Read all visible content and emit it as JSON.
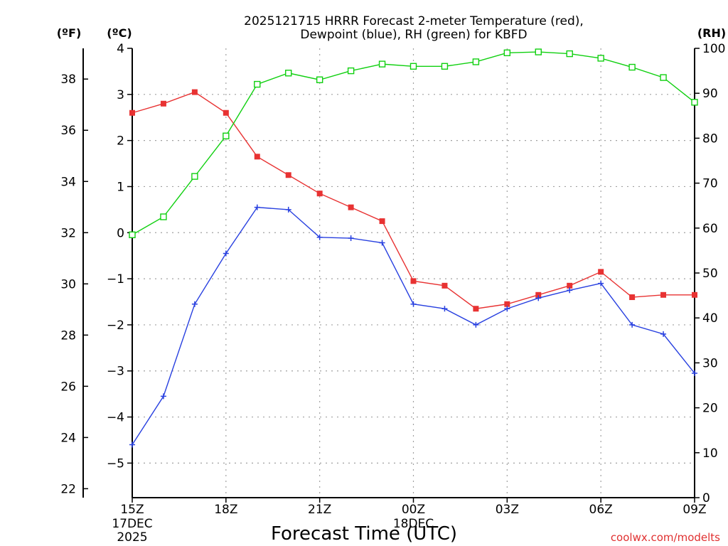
{
  "chart_data": {
    "type": "line",
    "title": "2025121715 HRRR Forecast 2-meter Temperature (red),",
    "subtitle": "Dewpoint (blue), RH (green) for KBFD",
    "xlabel": "Forecast Time (UTC)",
    "units": {
      "fahrenheit": "(ºF)",
      "celsius": "(ºC)",
      "rh": "(RH)"
    },
    "x_hours": [
      0,
      1,
      2,
      3,
      4,
      5,
      6,
      7,
      8,
      9,
      10,
      11,
      12,
      13,
      14,
      15,
      16,
      17,
      18
    ],
    "x_ticks": [
      {
        "hour": 0,
        "label": "15Z",
        "sub": [
          "17DEC",
          "2025"
        ]
      },
      {
        "hour": 3,
        "label": "18Z",
        "sub": []
      },
      {
        "hour": 6,
        "label": "21Z",
        "sub": []
      },
      {
        "hour": 9,
        "label": "00Z",
        "sub": [
          "18DEC"
        ]
      },
      {
        "hour": 12,
        "label": "03Z",
        "sub": []
      },
      {
        "hour": 15,
        "label": "06Z",
        "sub": []
      },
      {
        "hour": 18,
        "label": "09Z",
        "sub": []
      }
    ],
    "y_celsius_range": [
      -5.75,
      4.0
    ],
    "y_celsius_ticks": [
      {
        "v": 4,
        "label": "4"
      },
      {
        "v": 3,
        "label": "3"
      },
      {
        "v": 2,
        "label": "2"
      },
      {
        "v": 1,
        "label": "1"
      },
      {
        "v": 0,
        "label": "0"
      },
      {
        "v": -1,
        "label": "−1"
      },
      {
        "v": -2,
        "label": "−2"
      },
      {
        "v": -3,
        "label": "−3"
      },
      {
        "v": -4,
        "label": "−4"
      },
      {
        "v": -5,
        "label": "−5"
      }
    ],
    "y_fahrenheit_ticks": [
      {
        "v": 38,
        "label": "38"
      },
      {
        "v": 36,
        "label": "36"
      },
      {
        "v": 34,
        "label": "34"
      },
      {
        "v": 32,
        "label": "32"
      },
      {
        "v": 30,
        "label": "30"
      },
      {
        "v": 28,
        "label": "28"
      },
      {
        "v": 26,
        "label": "26"
      },
      {
        "v": 24,
        "label": "24"
      },
      {
        "v": 22,
        "label": "22"
      }
    ],
    "y_rh_range": [
      0,
      100
    ],
    "y_rh_ticks": [
      {
        "v": 100,
        "label": "100"
      },
      {
        "v": 90,
        "label": "90"
      },
      {
        "v": 80,
        "label": "80"
      },
      {
        "v": 70,
        "label": "70"
      },
      {
        "v": 60,
        "label": "60"
      },
      {
        "v": 50,
        "label": "50"
      },
      {
        "v": 40,
        "label": "40"
      },
      {
        "v": 30,
        "label": "30"
      },
      {
        "v": 20,
        "label": "20"
      },
      {
        "v": 10,
        "label": "10"
      },
      {
        "v": 0,
        "label": "0"
      }
    ],
    "grid": true,
    "series": [
      {
        "name": "2-meter Temperature",
        "axis": "celsius",
        "color": "#e83232",
        "marker": "filled-square",
        "values": [
          2.6,
          2.8,
          3.05,
          2.6,
          1.65,
          1.25,
          0.85,
          0.55,
          0.25,
          -1.05,
          -1.15,
          -1.65,
          -1.55,
          -1.35,
          -1.15,
          -0.85,
          -1.4,
          -1.35,
          -1.35
        ]
      },
      {
        "name": "Dewpoint",
        "axis": "celsius",
        "color": "#2840e0",
        "marker": "plus",
        "values": [
          -4.6,
          -3.55,
          -1.55,
          -0.45,
          0.55,
          0.5,
          -0.1,
          -0.12,
          -0.22,
          -1.55,
          -1.65,
          -2.0,
          -1.65,
          -1.42,
          -1.25,
          -1.1,
          -2.0,
          -2.2,
          -3.05
        ]
      },
      {
        "name": "RH",
        "axis": "rh",
        "color": "#10d010",
        "marker": "open-square",
        "values": [
          58.5,
          62.5,
          71.5,
          80.5,
          92.0,
          94.5,
          93.0,
          95.0,
          96.5,
          96.0,
          96.0,
          97.0,
          99.0,
          99.2,
          98.8,
          97.8,
          95.8,
          93.5,
          88.0
        ]
      }
    ]
  },
  "watermark": "coolwx.com/modelts"
}
